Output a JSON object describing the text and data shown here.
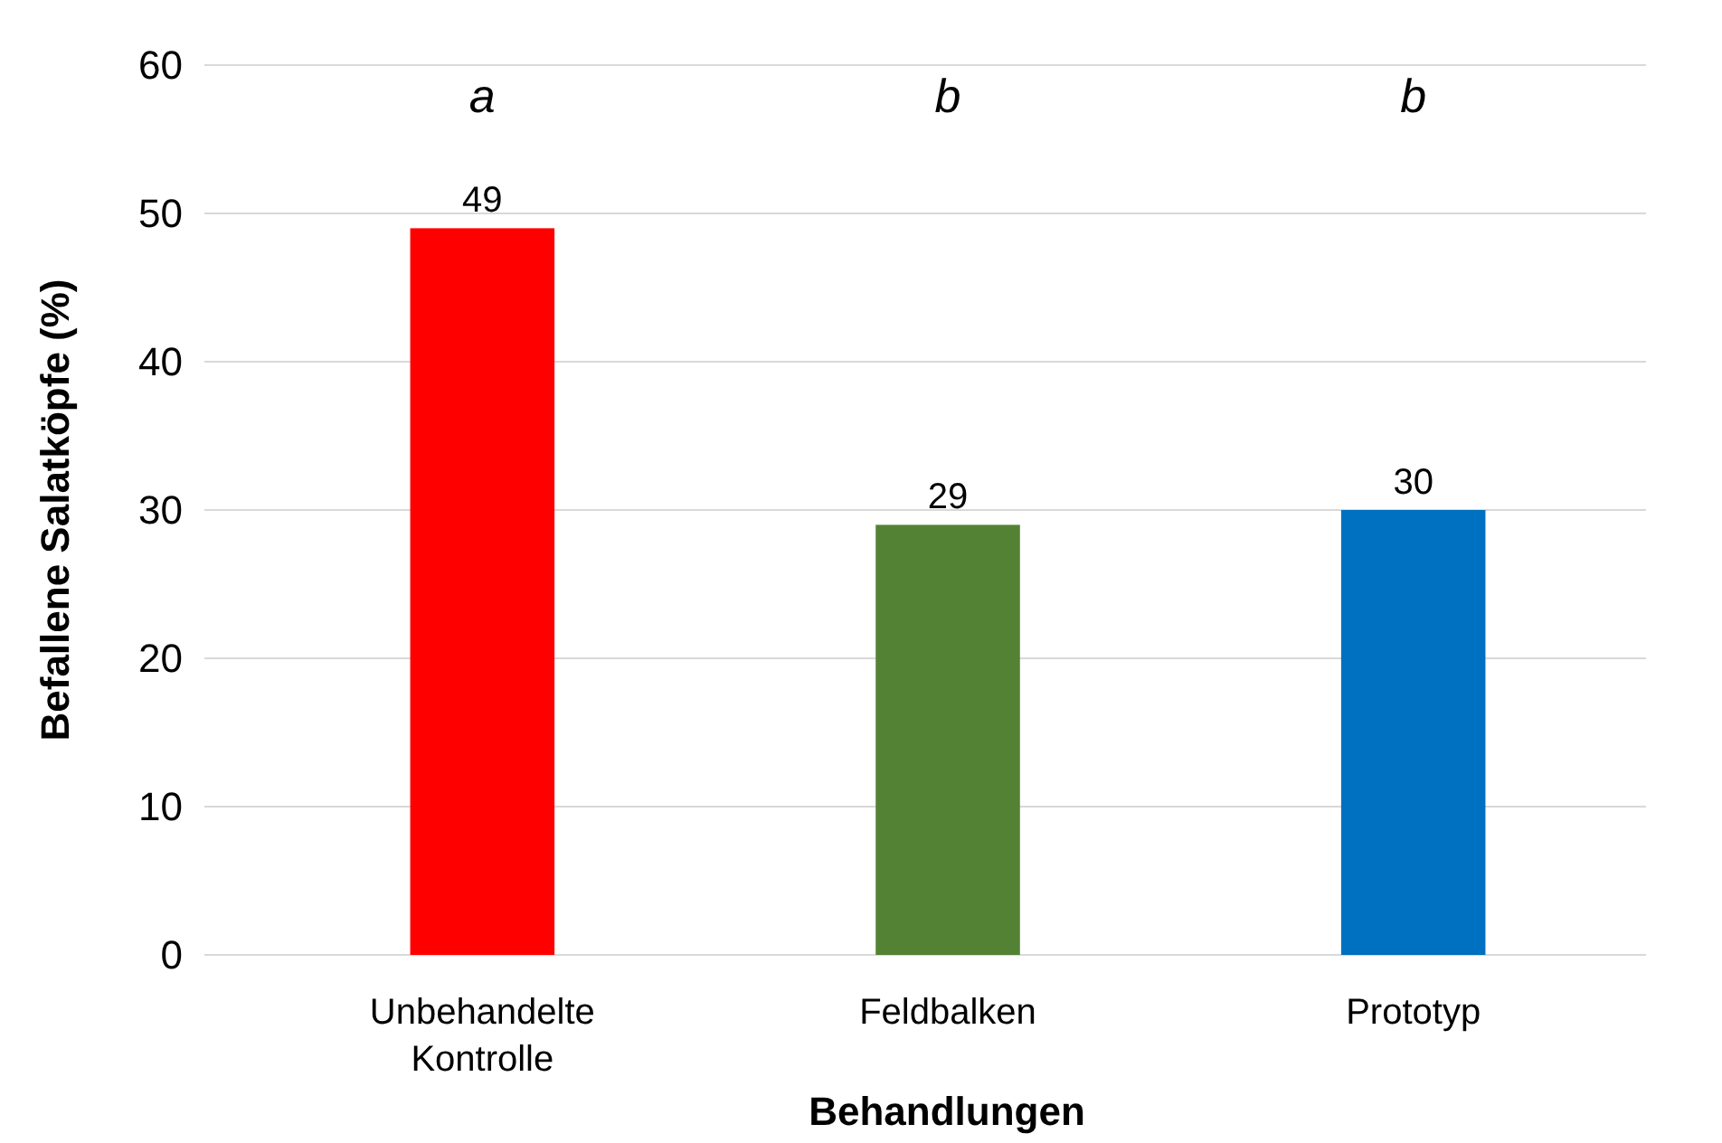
{
  "chart_data": {
    "type": "bar",
    "xlabel": "Behandlungen",
    "ylabel": "Befallene Salatköpfe (%)",
    "categories": [
      "Unbehandelte Kontrolle",
      "Feldbalken",
      "Prototyp"
    ],
    "values": [
      49,
      29,
      30
    ],
    "colors": [
      "#ff0000",
      "#548235",
      "#0070c0"
    ],
    "ylim": [
      0,
      60
    ],
    "yticks": [
      0,
      10,
      20,
      30,
      40,
      50,
      60
    ],
    "grid": "y",
    "data_labels": true,
    "annotations": [
      "a",
      "b",
      "b"
    ]
  }
}
